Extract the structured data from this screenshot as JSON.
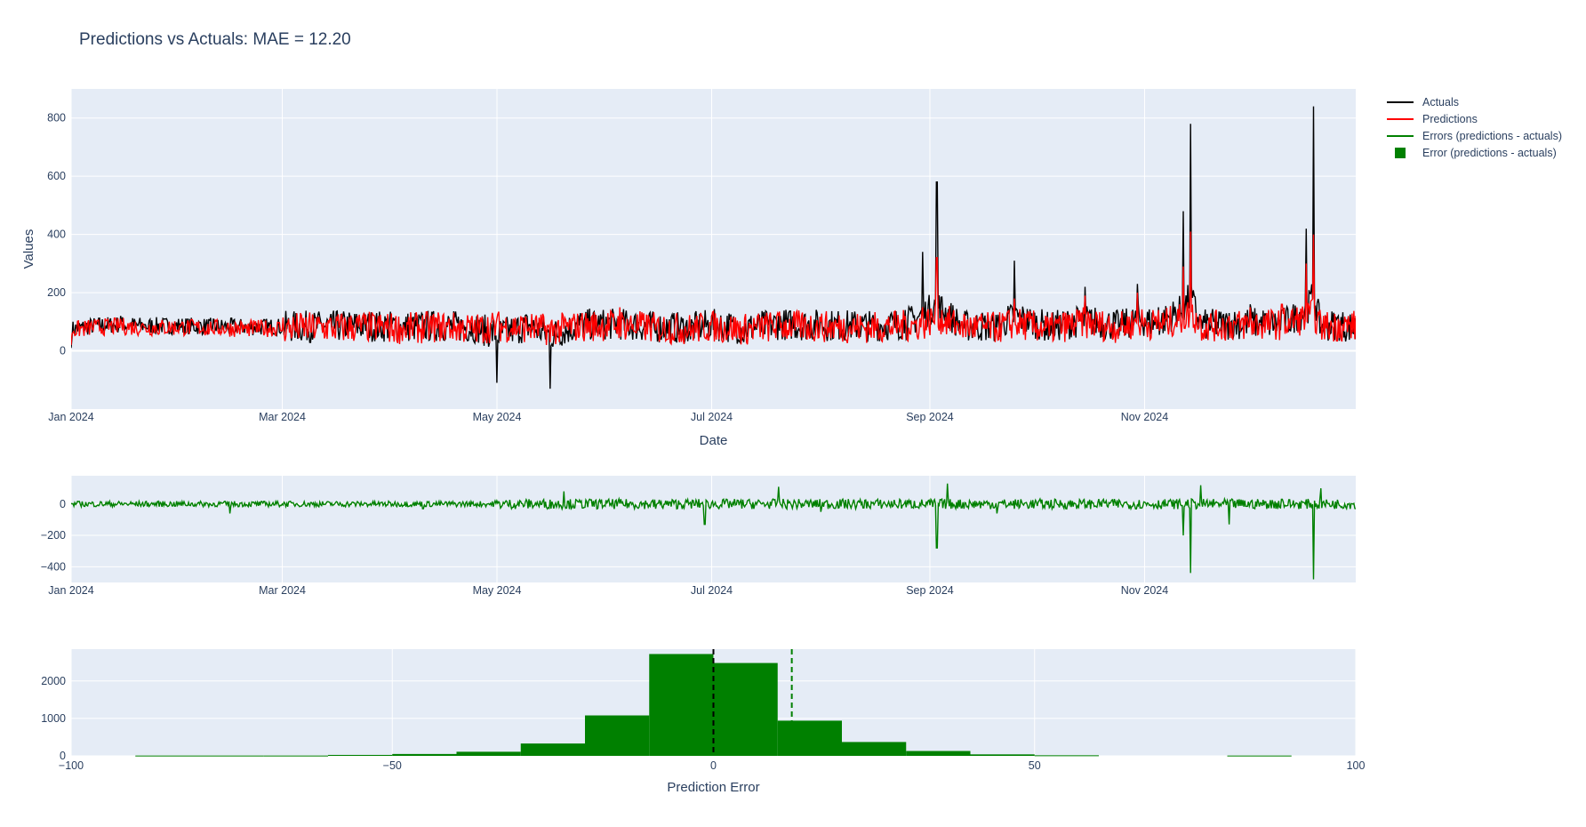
{
  "title": "Predictions vs Actuals: MAE = 12.20",
  "colors": {
    "plot_bg": "#e5ecf6",
    "grid": "#ffffff",
    "actuals": "#000000",
    "predictions": "#ff0000",
    "errors": "#008000",
    "text": "#2a3f5f"
  },
  "legend": {
    "position": "top-right, outside plot",
    "items": [
      {
        "label": "Actuals",
        "kind": "line",
        "color": "#000000"
      },
      {
        "label": "Predictions",
        "kind": "line",
        "color": "#ff0000"
      },
      {
        "label": "Errors (predictions - actuals)",
        "kind": "line",
        "color": "#008000"
      },
      {
        "label": "Error (predictions - actuals)",
        "kind": "square",
        "color": "#008000"
      }
    ]
  },
  "chart_data": [
    {
      "type": "line",
      "panel": "timeseries",
      "xlabel": "Date",
      "ylabel": "Values",
      "x_range": [
        "2024-01-01",
        "2024-12-31"
      ],
      "ylim": [
        -200,
        900
      ],
      "x_ticks": [
        {
          "date": "2024-01-01",
          "label": "Jan 2024"
        },
        {
          "date": "2024-03-01",
          "label": "Mar 2024"
        },
        {
          "date": "2024-05-01",
          "label": "May 2024"
        },
        {
          "date": "2024-07-01",
          "label": "Jul 2024"
        },
        {
          "date": "2024-09-01",
          "label": "Sep 2024"
        },
        {
          "date": "2024-11-01",
          "label": "Nov 2024"
        }
      ],
      "y_ticks": [
        0,
        200,
        400,
        600,
        800
      ],
      "grid": true,
      "series": [
        {
          "name": "Actuals",
          "color": "#000000",
          "points": [
            [
              "2024-01-01",
              10
            ],
            [
              "2024-01-08",
              100
            ],
            [
              "2024-01-15",
              120
            ],
            [
              "2024-01-22",
              90
            ],
            [
              "2024-02-01",
              95
            ],
            [
              "2024-02-10",
              75
            ],
            [
              "2024-02-20",
              65
            ],
            [
              "2024-03-01",
              70
            ],
            [
              "2024-03-15",
              80
            ],
            [
              "2024-03-25",
              95
            ],
            [
              "2024-04-05",
              70
            ],
            [
              "2024-04-15",
              95
            ],
            [
              "2024-04-25",
              60
            ],
            [
              "2024-05-01",
              -110
            ],
            [
              "2024-05-10",
              90
            ],
            [
              "2024-05-16",
              -130
            ],
            [
              "2024-05-25",
              120
            ],
            [
              "2024-06-05",
              130
            ],
            [
              "2024-06-15",
              60
            ],
            [
              "2024-06-25",
              40
            ],
            [
              "2024-07-01",
              120
            ],
            [
              "2024-07-10",
              30
            ],
            [
              "2024-07-20",
              130
            ],
            [
              "2024-08-01",
              110
            ],
            [
              "2024-08-15",
              90
            ],
            [
              "2024-08-25",
              140
            ],
            [
              "2024-08-30",
              340
            ],
            [
              "2024-09-03",
              580
            ],
            [
              "2024-09-10",
              90
            ],
            [
              "2024-09-20",
              80
            ],
            [
              "2024-09-25",
              310
            ],
            [
              "2024-10-05",
              60
            ],
            [
              "2024-10-15",
              220
            ],
            [
              "2024-10-25",
              90
            ],
            [
              "2024-10-30",
              230
            ],
            [
              "2024-11-05",
              150
            ],
            [
              "2024-11-12",
              480
            ],
            [
              "2024-11-14",
              780
            ],
            [
              "2024-11-17",
              110
            ],
            [
              "2024-11-25",
              130
            ],
            [
              "2024-12-01",
              160
            ],
            [
              "2024-12-10",
              140
            ],
            [
              "2024-12-17",
              420
            ],
            [
              "2024-12-19",
              840
            ],
            [
              "2024-12-21",
              80
            ],
            [
              "2024-12-26",
              120
            ],
            [
              "2024-12-31",
              40
            ]
          ]
        },
        {
          "name": "Predictions",
          "color": "#ff0000",
          "points": [
            [
              "2024-01-01",
              20
            ],
            [
              "2024-01-08",
              90
            ],
            [
              "2024-01-15",
              110
            ],
            [
              "2024-01-22",
              80
            ],
            [
              "2024-02-01",
              85
            ],
            [
              "2024-02-10",
              70
            ],
            [
              "2024-02-20",
              60
            ],
            [
              "2024-03-01",
              70
            ],
            [
              "2024-03-15",
              75
            ],
            [
              "2024-03-25",
              90
            ],
            [
              "2024-04-05",
              60
            ],
            [
              "2024-04-15",
              100
            ],
            [
              "2024-04-25",
              50
            ],
            [
              "2024-05-01",
              110
            ],
            [
              "2024-05-10",
              80
            ],
            [
              "2024-05-16",
              30
            ],
            [
              "2024-05-25",
              110
            ],
            [
              "2024-06-05",
              150
            ],
            [
              "2024-06-15",
              70
            ],
            [
              "2024-06-25",
              50
            ],
            [
              "2024-07-01",
              110
            ],
            [
              "2024-07-10",
              40
            ],
            [
              "2024-07-20",
              120
            ],
            [
              "2024-08-01",
              100
            ],
            [
              "2024-08-15",
              80
            ],
            [
              "2024-08-25",
              120
            ],
            [
              "2024-08-30",
              150
            ],
            [
              "2024-09-03",
              320
            ],
            [
              "2024-09-10",
              100
            ],
            [
              "2024-09-20",
              70
            ],
            [
              "2024-09-25",
              180
            ],
            [
              "2024-10-05",
              50
            ],
            [
              "2024-10-15",
              190
            ],
            [
              "2024-10-25",
              80
            ],
            [
              "2024-10-30",
              200
            ],
            [
              "2024-11-05",
              140
            ],
            [
              "2024-11-12",
              290
            ],
            [
              "2024-11-14",
              410
            ],
            [
              "2024-11-17",
              120
            ],
            [
              "2024-11-25",
              120
            ],
            [
              "2024-12-01",
              150
            ],
            [
              "2024-12-10",
              160
            ],
            [
              "2024-12-17",
              300
            ],
            [
              "2024-12-19",
              400
            ],
            [
              "2024-12-21",
              110
            ],
            [
              "2024-12-26",
              110
            ],
            [
              "2024-12-31",
              120
            ]
          ]
        }
      ]
    },
    {
      "type": "line",
      "panel": "errors",
      "x_range": [
        "2024-01-01",
        "2024-12-31"
      ],
      "ylim": [
        -500,
        180
      ],
      "x_ticks": [
        {
          "date": "2024-01-01",
          "label": "Jan 2024"
        },
        {
          "date": "2024-03-01",
          "label": "Mar 2024"
        },
        {
          "date": "2024-05-01",
          "label": "May 2024"
        },
        {
          "date": "2024-07-01",
          "label": "Jul 2024"
        },
        {
          "date": "2024-09-01",
          "label": "Sep 2024"
        },
        {
          "date": "2024-11-01",
          "label": "Nov 2024"
        }
      ],
      "y_ticks": [
        0,
        -200,
        -400
      ],
      "grid": true,
      "series": [
        {
          "name": "Errors (predictions - actuals)",
          "color": "#008000",
          "points": [
            [
              "2024-01-01",
              5
            ],
            [
              "2024-02-10",
              -10
            ],
            [
              "2024-02-15",
              -60
            ],
            [
              "2024-03-01",
              0
            ],
            [
              "2024-04-10",
              -30
            ],
            [
              "2024-05-01",
              20
            ],
            [
              "2024-05-20",
              80
            ],
            [
              "2024-06-15",
              -30
            ],
            [
              "2024-06-29",
              -130
            ],
            [
              "2024-07-20",
              110
            ],
            [
              "2024-08-01",
              -50
            ],
            [
              "2024-08-20",
              0
            ],
            [
              "2024-09-03",
              -280
            ],
            [
              "2024-09-06",
              130
            ],
            [
              "2024-09-20",
              -60
            ],
            [
              "2024-10-20",
              20
            ],
            [
              "2024-11-12",
              -200
            ],
            [
              "2024-11-14",
              -440
            ],
            [
              "2024-11-17",
              120
            ],
            [
              "2024-11-25",
              -130
            ],
            [
              "2024-12-10",
              30
            ],
            [
              "2024-12-19",
              -480
            ],
            [
              "2024-12-21",
              100
            ],
            [
              "2024-12-31",
              -30
            ]
          ]
        }
      ]
    },
    {
      "type": "bar",
      "panel": "histogram",
      "xlabel": "Prediction Error",
      "xlim": [
        -100,
        100
      ],
      "ylim": [
        0,
        2850
      ],
      "x_ticks": [
        -100,
        -50,
        0,
        50,
        100
      ],
      "y_ticks": [
        0,
        1000,
        2000
      ],
      "grid": true,
      "series_name": "Error (predictions - actuals)",
      "bin_width": 10,
      "bins": [
        {
          "start": -90,
          "count": 8
        },
        {
          "start": -80,
          "count": 8
        },
        {
          "start": -70,
          "count": 8
        },
        {
          "start": -60,
          "count": 25
        },
        {
          "start": -50,
          "count": 50
        },
        {
          "start": -40,
          "count": 110
        },
        {
          "start": -30,
          "count": 330
        },
        {
          "start": -20,
          "count": 1080
        },
        {
          "start": -10,
          "count": 2720
        },
        {
          "start": 0,
          "count": 2480
        },
        {
          "start": 10,
          "count": 940
        },
        {
          "start": 20,
          "count": 370
        },
        {
          "start": 30,
          "count": 130
        },
        {
          "start": 40,
          "count": 40
        },
        {
          "start": 50,
          "count": 15
        },
        {
          "start": 80,
          "count": 8
        }
      ],
      "vlines": [
        {
          "x": 0,
          "color": "#000000",
          "style": "dashed"
        },
        {
          "x": 12.2,
          "color": "#008000",
          "style": "dashed"
        }
      ]
    }
  ]
}
